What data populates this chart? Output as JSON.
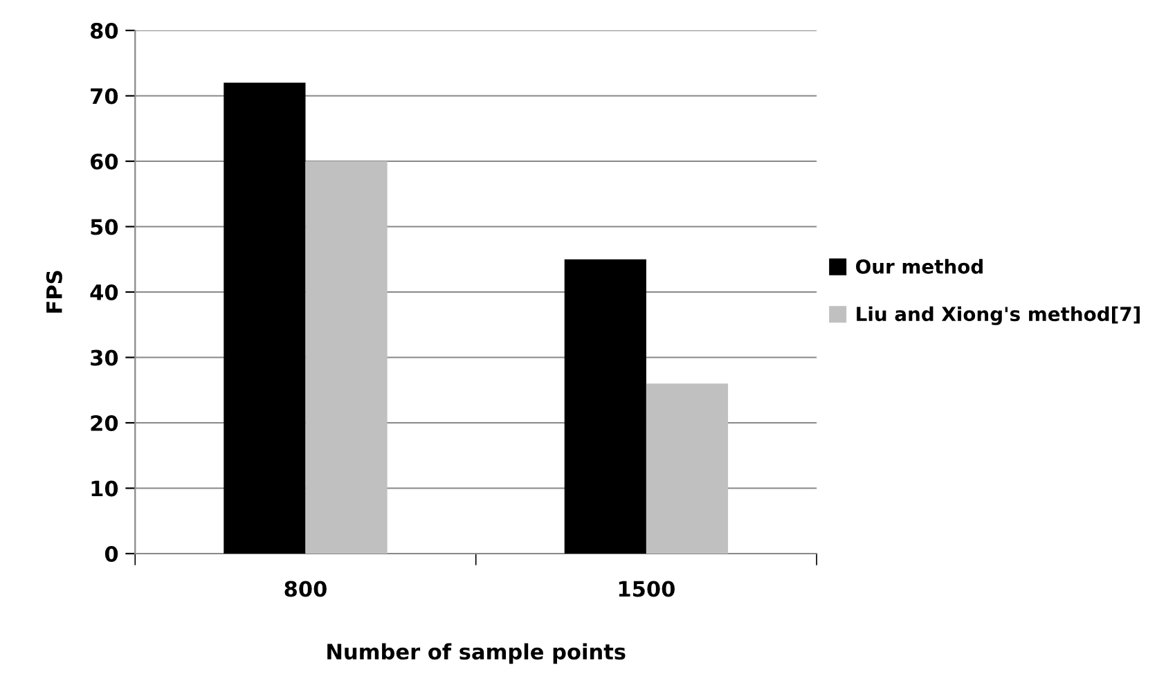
{
  "chart_data": {
    "type": "bar",
    "xlabel": "Number of sample points",
    "ylabel": "FPS",
    "categories": [
      "800",
      "1500"
    ],
    "series": [
      {
        "name": "Our method",
        "color": "#000000",
        "values": [
          72,
          45
        ]
      },
      {
        "name": "Liu and Xiong's method[7]",
        "color": "#c0c0c0",
        "values": [
          60,
          26
        ]
      }
    ],
    "ylim": [
      0,
      80
    ],
    "yticks": [
      0,
      10,
      20,
      30,
      40,
      50,
      60,
      70,
      80
    ],
    "grid": "y",
    "legend": "right"
  }
}
